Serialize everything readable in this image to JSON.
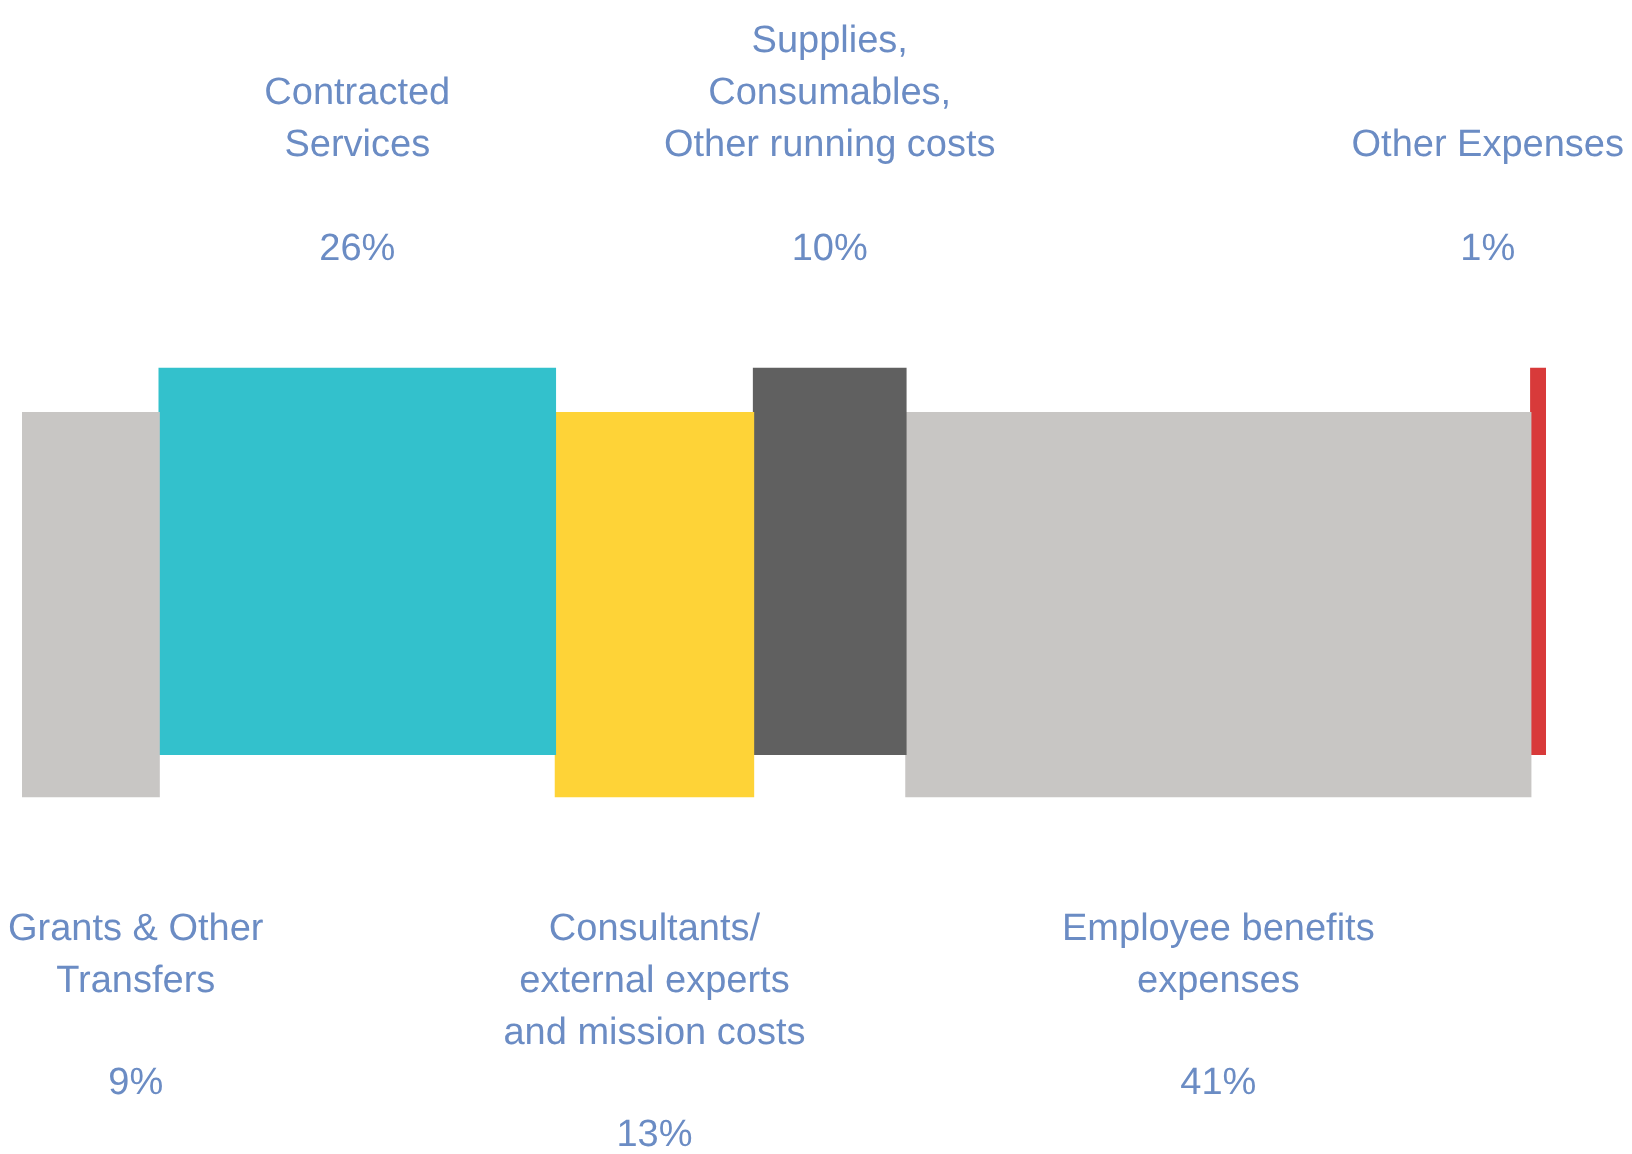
{
  "chart_data": {
    "type": "other",
    "categories": [
      "Grants & Other Transfers",
      "Contracted Services",
      "Consultants/ external experts and mission costs",
      "Supplies, Consumables, Other running costs",
      "Employee benefits expenses",
      "Other Expenses"
    ],
    "values": [
      9,
      26,
      13,
      10,
      41,
      1
    ],
    "value_labels": [
      "9%",
      "26%",
      "13%",
      "10%",
      "41%",
      "1%"
    ],
    "colors": [
      "#c8c6c4",
      "#33c1cc",
      "#fed337",
      "#606060",
      "#c8c6c4",
      "#d83a3a"
    ]
  }
}
